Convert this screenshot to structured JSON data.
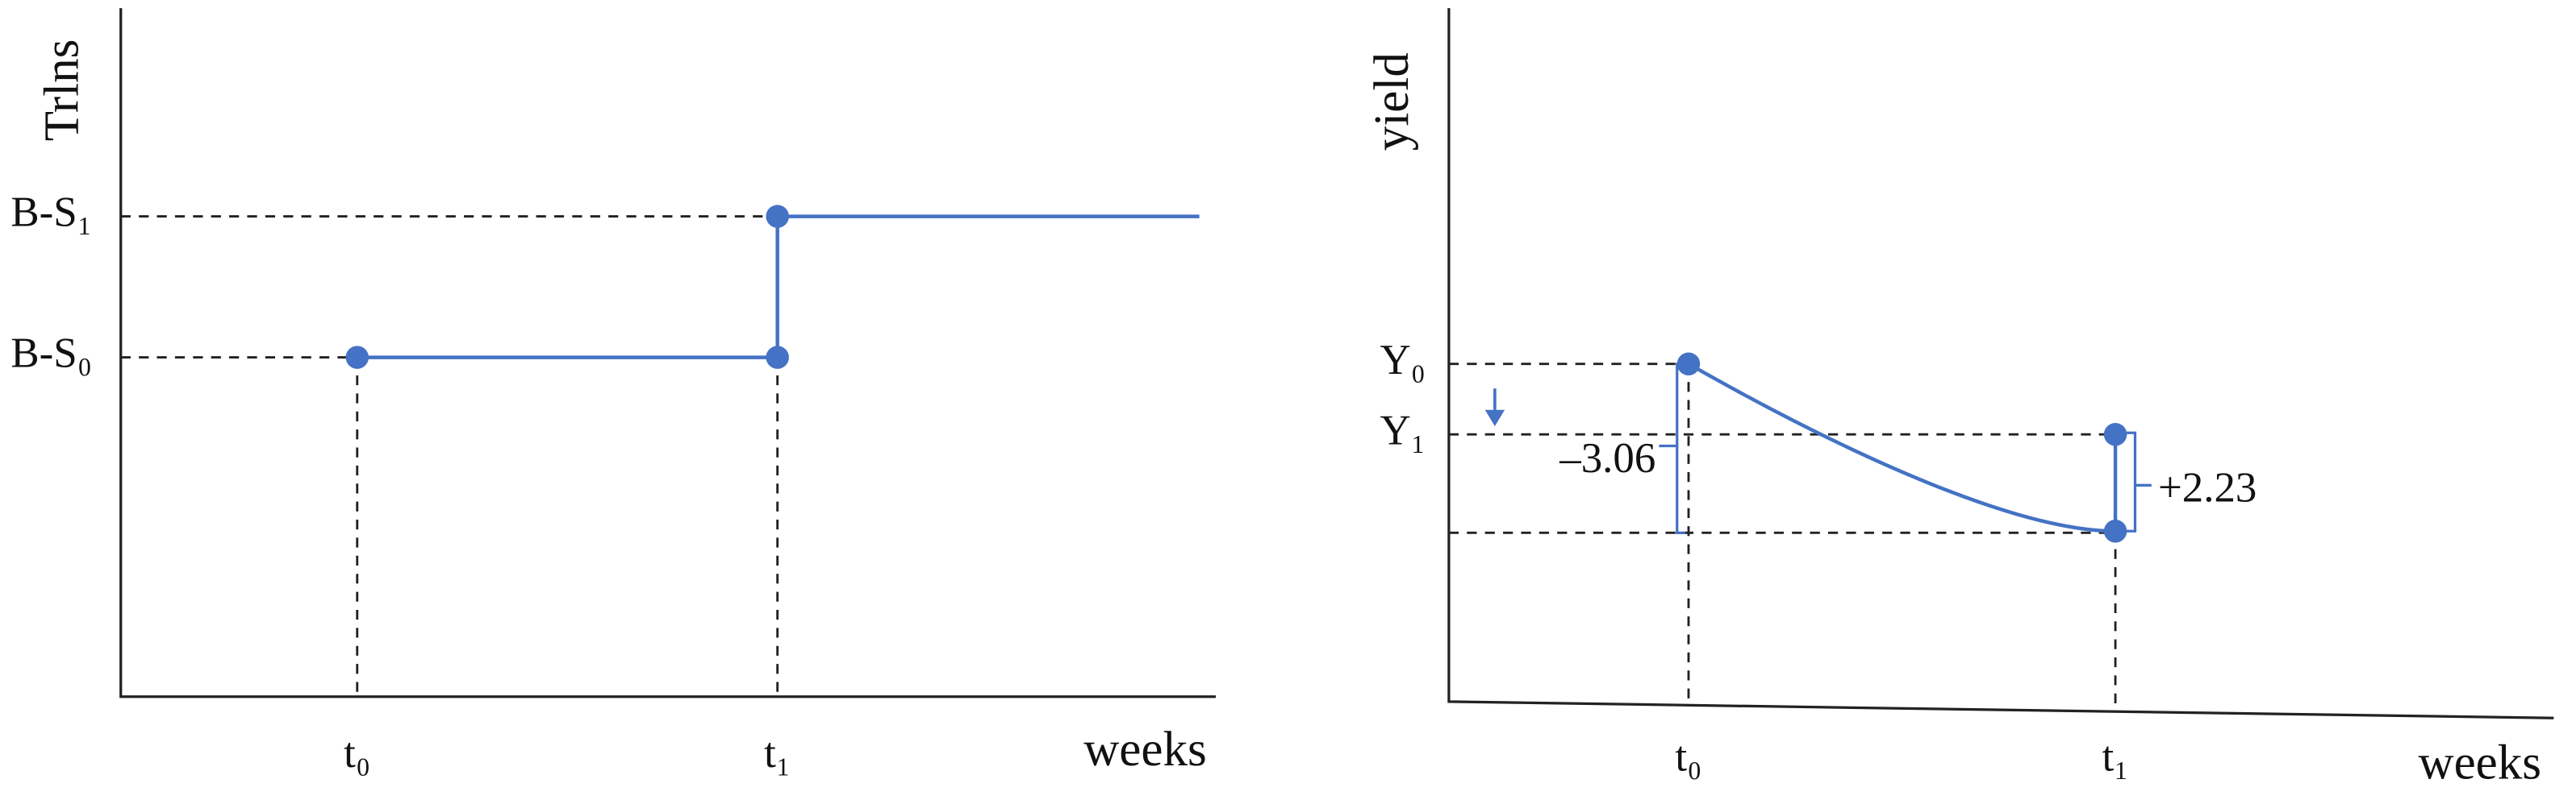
{
  "left_panel": {
    "y_label": "Trlns",
    "x_label": "weeks",
    "y_labels": [
      "B-S₁",
      "B-S₀"
    ],
    "x_labels": [
      "t₀",
      "t₁"
    ]
  },
  "right_panel": {
    "y_label": "yield",
    "x_label": "weeks",
    "y_labels": [
      "Y₀",
      "Y₁"
    ],
    "x_labels": [
      "t₀",
      "t₁"
    ],
    "annotations": [
      "–3.06",
      "+2.23"
    ]
  }
}
